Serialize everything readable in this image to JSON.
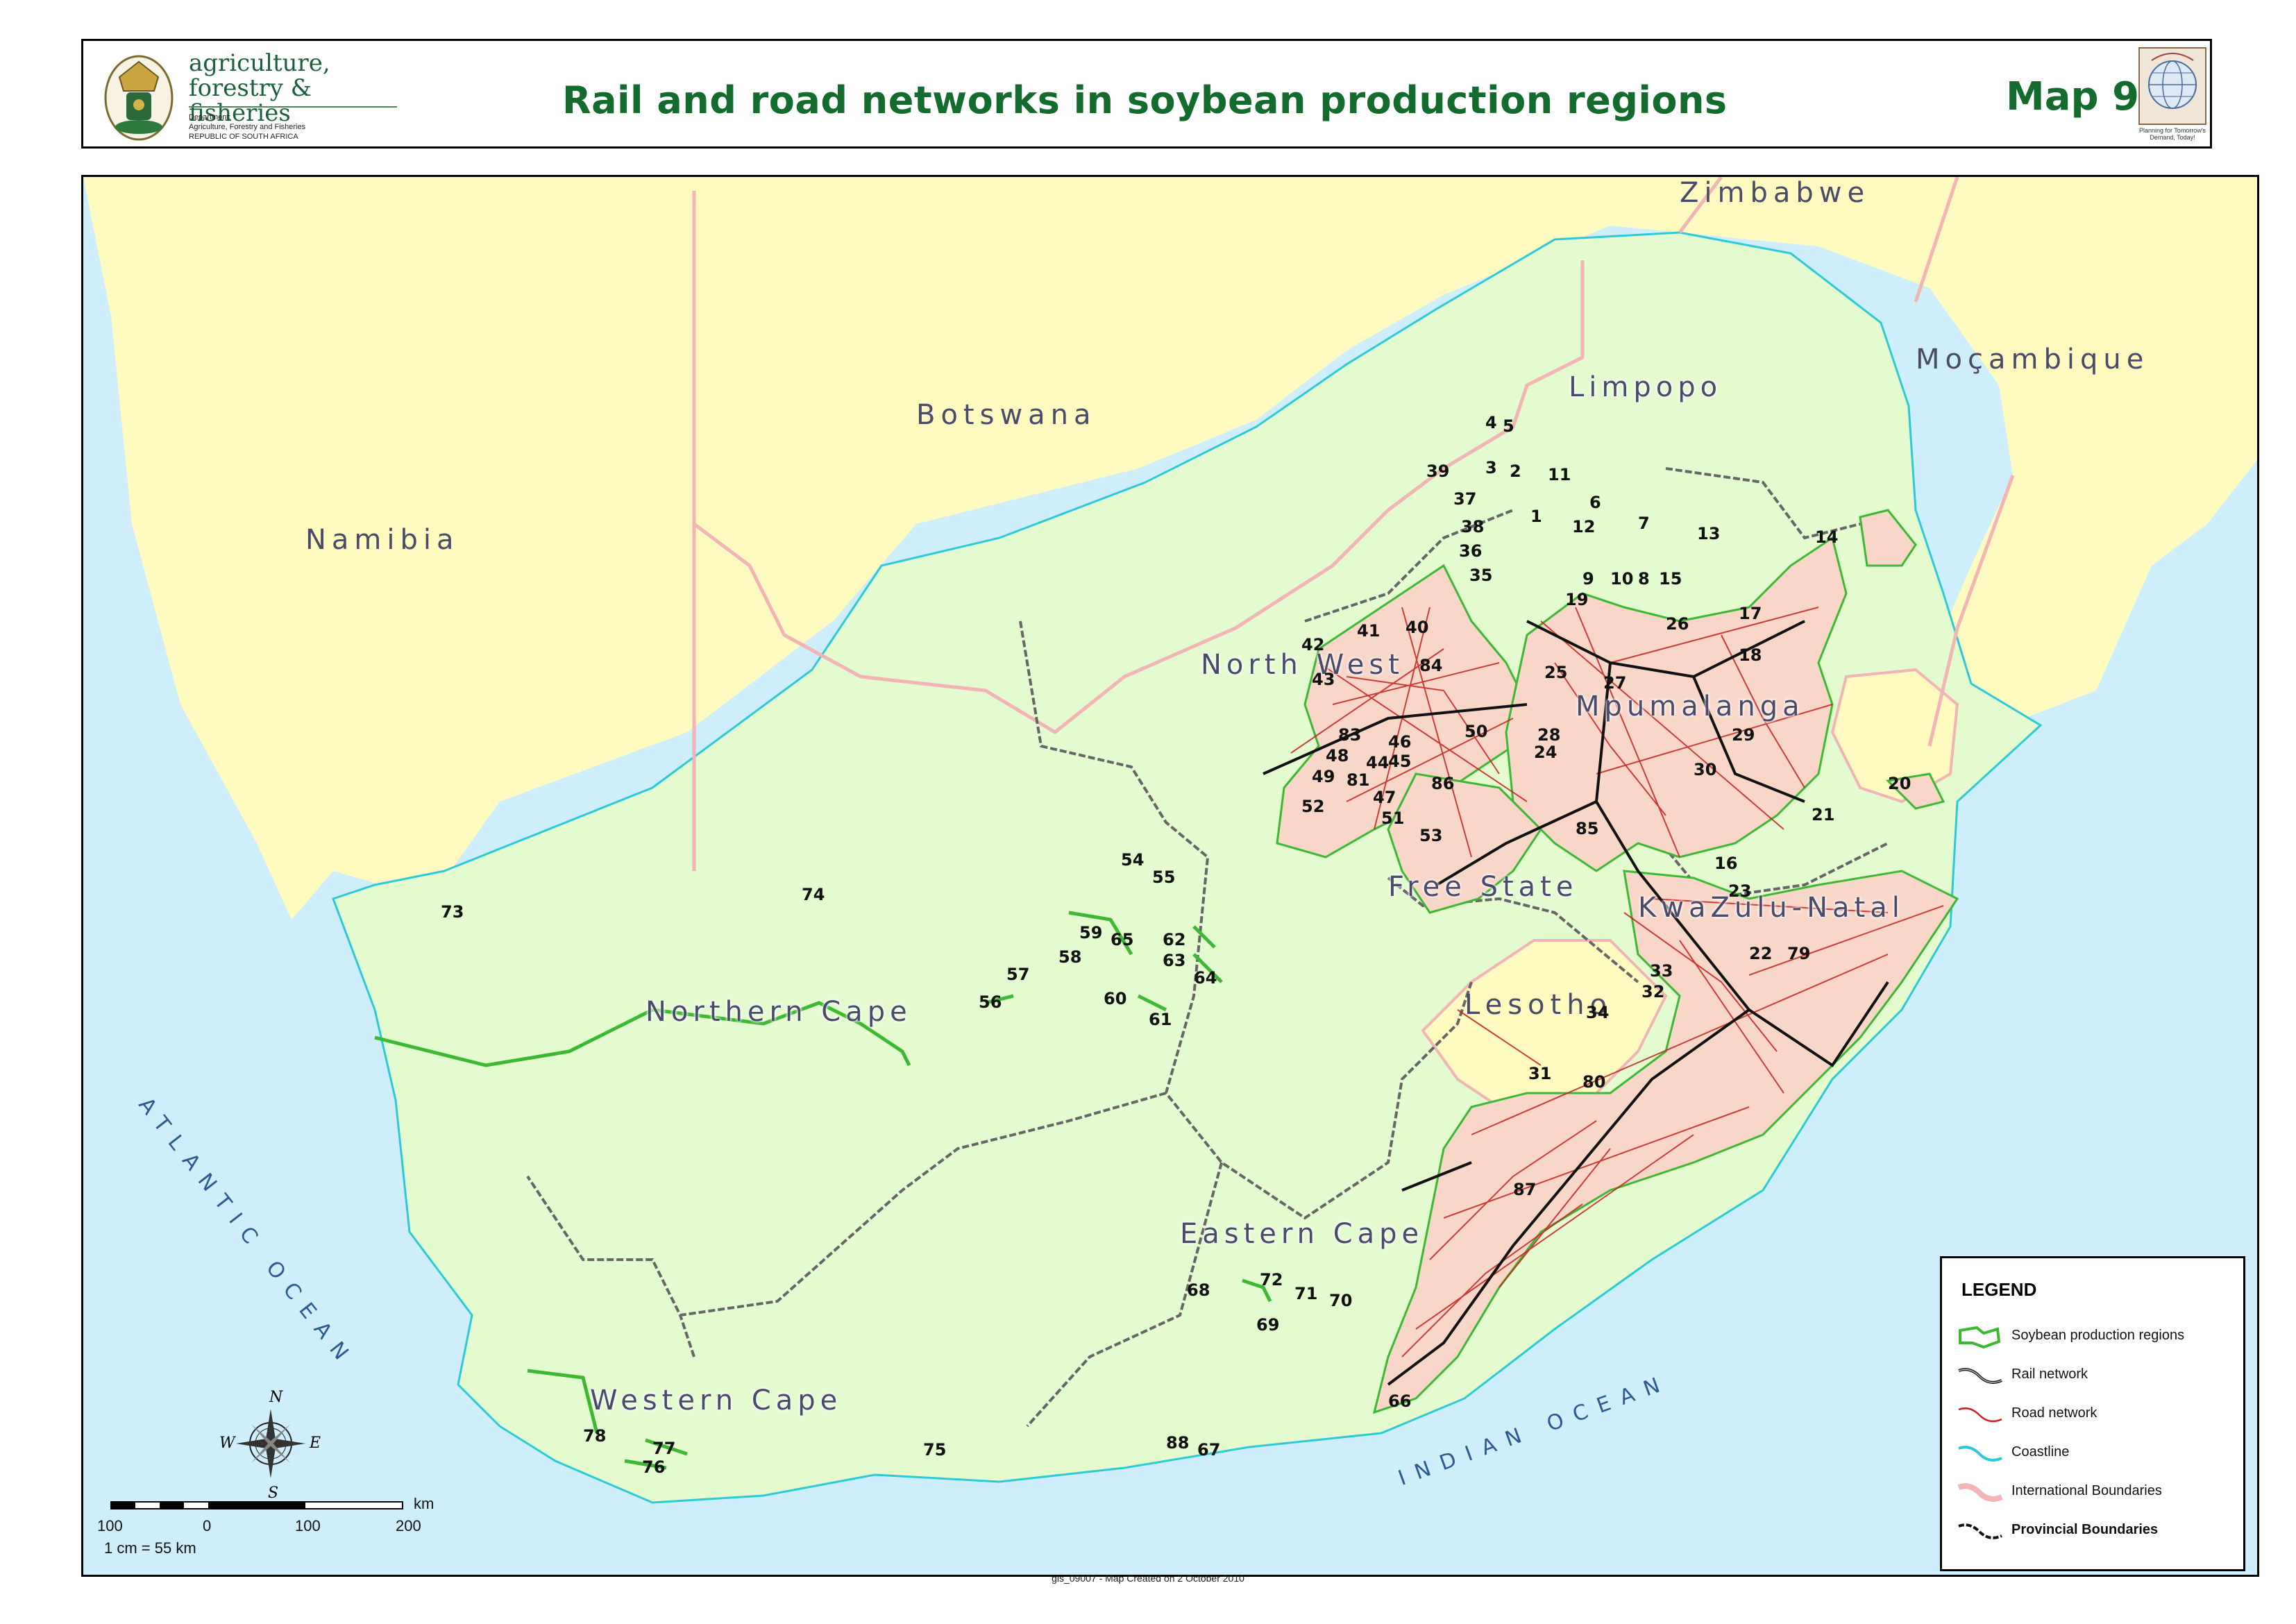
{
  "header": {
    "org_line1": "agriculture,",
    "org_line2": "forestry & fisheries",
    "dept_label": "Department:",
    "dept_name": "Agriculture, Forestry and Fisheries",
    "country": "REPUBLIC OF SOUTH AFRICA",
    "title": "Rail and road networks in soybean production regions",
    "map_number": "Map 9",
    "badge_text": "Planning for Tomorrow's Demand, Today!"
  },
  "countries": {
    "namibia": "Namibia",
    "botswana": "Botswana",
    "zimbabwe": "Zimbabwe",
    "mocambique": "Moçambique",
    "lesotho": "Lesotho"
  },
  "provinces": {
    "limpopo": "Limpopo",
    "north_west": "North West",
    "mpumalanga": "Mpumalanga",
    "free_state": "Free State",
    "kwazulu_natal": "KwaZulu-Natal",
    "northern_cape": "Northern Cape",
    "eastern_cape": "Eastern Cape",
    "western_cape": "Western Cape"
  },
  "oceans": {
    "atlantic": "ATLANTIC OCEAN",
    "indian": "INDIAN OCEAN"
  },
  "region_numbers": [
    "1",
    "2",
    "3",
    "4",
    "5",
    "6",
    "7",
    "8",
    "9",
    "10",
    "11",
    "12",
    "13",
    "14",
    "15",
    "16",
    "17",
    "18",
    "19",
    "20",
    "21",
    "22",
    "23",
    "24",
    "25",
    "26",
    "27",
    "28",
    "29",
    "30",
    "31",
    "32",
    "33",
    "34",
    "35",
    "36",
    "37",
    "38",
    "39",
    "40",
    "41",
    "42",
    "43",
    "44",
    "45",
    "46",
    "47",
    "48",
    "49",
    "50",
    "51",
    "52",
    "53",
    "54",
    "55",
    "56",
    "57",
    "58",
    "59",
    "60",
    "61",
    "62",
    "63",
    "64",
    "65",
    "66",
    "67",
    "68",
    "69",
    "70",
    "71",
    "72",
    "73",
    "74",
    "75",
    "76",
    "77",
    "78",
    "79",
    "80",
    "81",
    "83",
    "84",
    "85",
    "86",
    "87",
    "88"
  ],
  "legend": {
    "title": "LEGEND",
    "items": [
      {
        "label": "Soybean production regions",
        "color": "#3cb832"
      },
      {
        "label": "Rail network",
        "color": "#111111"
      },
      {
        "label": "Road network",
        "color": "#c62020"
      },
      {
        "label": "Coastline",
        "color": "#2ec9d9"
      },
      {
        "label": "International Boundaries",
        "color": "#f2b4b4"
      },
      {
        "label": "Provincial Boundaries",
        "color": "#111111"
      }
    ]
  },
  "scale_bar": {
    "ticks": [
      "100",
      "0",
      "100",
      "200"
    ],
    "unit": "km",
    "ratio": "1 cm = 55 km"
  },
  "compass": {
    "n": "N",
    "e": "E",
    "s": "S",
    "w": "W"
  },
  "footer": "gis_09007 - Map Created on 2 October 2010",
  "colors": {
    "sa_land": "#e3fbcf",
    "neighbour_land": "#fffbc0",
    "ocean": "#cdeefa",
    "title_green": "#136b2d"
  }
}
